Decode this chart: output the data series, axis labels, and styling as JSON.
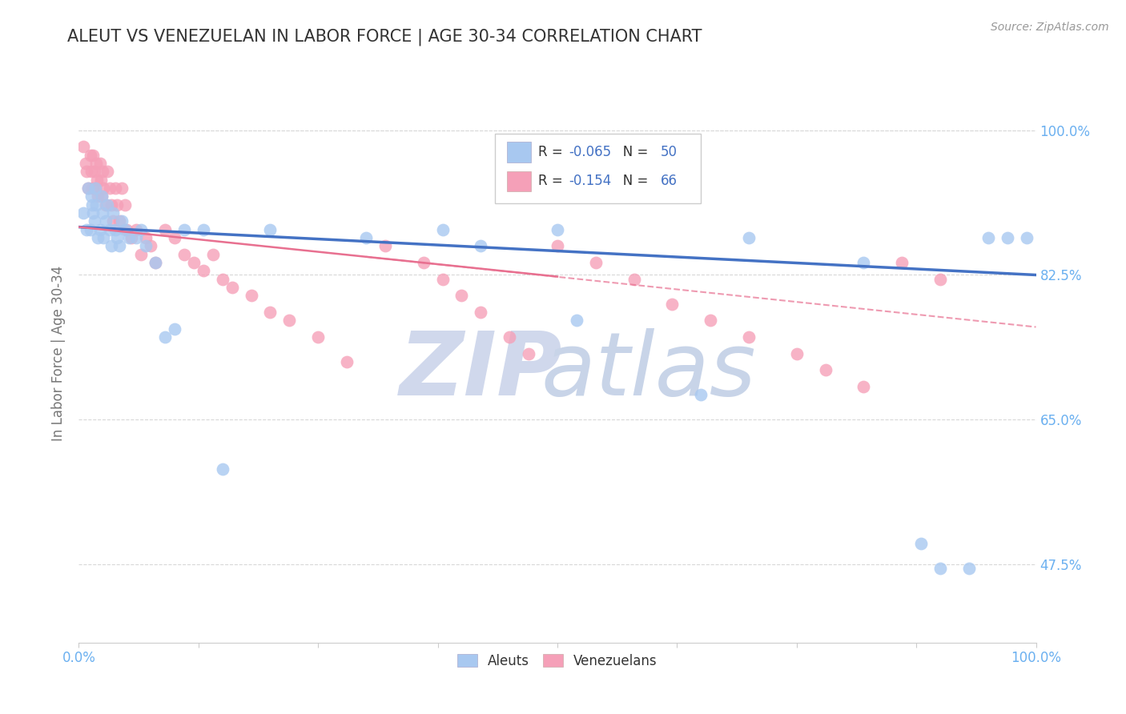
{
  "title": "ALEUT VS VENEZUELAN IN LABOR FORCE | AGE 30-34 CORRELATION CHART",
  "source": "Source: ZipAtlas.com",
  "ylabel": "In Labor Force | Age 30-34",
  "xlim": [
    0.0,
    1.0
  ],
  "ylim": [
    0.38,
    1.08
  ],
  "yticks": [
    0.475,
    0.65,
    0.825,
    1.0
  ],
  "ytick_labels": [
    "47.5%",
    "65.0%",
    "82.5%",
    "100.0%"
  ],
  "xticks": [
    0.0,
    0.125,
    0.25,
    0.375,
    0.5,
    0.625,
    0.75,
    0.875,
    1.0
  ],
  "xtick_labels": [
    "0.0%",
    "",
    "",
    "",
    "",
    "",
    "",
    "",
    "100.0%"
  ],
  "aleut_color": "#a8c8f0",
  "venezuelan_color": "#f5a0b8",
  "aleut_R": -0.065,
  "aleut_N": 50,
  "venezuelan_R": -0.154,
  "venezuelan_N": 66,
  "background_color": "#ffffff",
  "grid_color": "#d8d8d8",
  "title_color": "#333333",
  "axis_label_color": "#777777",
  "tick_color": "#6bb0f0",
  "right_tick_color": "#6bb0f0",
  "aleut_trend_color": "#4472c4",
  "venezuelan_trend_color": "#e87090",
  "aleut_trend_x": [
    0.0,
    1.0
  ],
  "aleut_trend_y": [
    0.883,
    0.825
  ],
  "venezuelan_trend_x": [
    0.0,
    0.5
  ],
  "venezuelan_trend_y": [
    0.883,
    0.823
  ],
  "aleut_points_x": [
    0.005,
    0.008,
    0.01,
    0.012,
    0.013,
    0.014,
    0.015,
    0.016,
    0.017,
    0.018,
    0.02,
    0.022,
    0.024,
    0.025,
    0.026,
    0.028,
    0.03,
    0.032,
    0.034,
    0.036,
    0.038,
    0.04,
    0.042,
    0.045,
    0.048,
    0.052,
    0.06,
    0.065,
    0.07,
    0.08,
    0.09,
    0.1,
    0.11,
    0.13,
    0.15,
    0.2,
    0.3,
    0.38,
    0.42,
    0.5,
    0.52,
    0.65,
    0.7,
    0.82,
    0.88,
    0.9,
    0.93,
    0.95,
    0.97,
    0.99
  ],
  "aleut_points_y": [
    0.9,
    0.88,
    0.93,
    0.88,
    0.92,
    0.91,
    0.9,
    0.89,
    0.93,
    0.91,
    0.87,
    0.88,
    0.92,
    0.9,
    0.87,
    0.89,
    0.91,
    0.88,
    0.86,
    0.9,
    0.88,
    0.87,
    0.86,
    0.89,
    0.88,
    0.87,
    0.87,
    0.88,
    0.86,
    0.84,
    0.75,
    0.76,
    0.88,
    0.88,
    0.59,
    0.88,
    0.87,
    0.88,
    0.86,
    0.88,
    0.77,
    0.68,
    0.87,
    0.84,
    0.5,
    0.47,
    0.47,
    0.87,
    0.87,
    0.87
  ],
  "venezuelan_points_x": [
    0.005,
    0.007,
    0.008,
    0.01,
    0.012,
    0.013,
    0.014,
    0.015,
    0.016,
    0.017,
    0.018,
    0.019,
    0.02,
    0.022,
    0.023,
    0.024,
    0.025,
    0.026,
    0.028,
    0.03,
    0.032,
    0.034,
    0.036,
    0.038,
    0.04,
    0.042,
    0.045,
    0.048,
    0.05,
    0.055,
    0.06,
    0.065,
    0.07,
    0.075,
    0.08,
    0.09,
    0.1,
    0.11,
    0.12,
    0.13,
    0.14,
    0.15,
    0.16,
    0.18,
    0.2,
    0.22,
    0.25,
    0.28,
    0.32,
    0.36,
    0.38,
    0.4,
    0.42,
    0.45,
    0.47,
    0.5,
    0.54,
    0.58,
    0.62,
    0.66,
    0.7,
    0.75,
    0.78,
    0.82,
    0.86,
    0.9
  ],
  "venezuelan_points_y": [
    0.98,
    0.96,
    0.95,
    0.93,
    0.97,
    0.95,
    0.93,
    0.97,
    0.95,
    0.93,
    0.96,
    0.94,
    0.92,
    0.96,
    0.94,
    0.92,
    0.95,
    0.93,
    0.91,
    0.95,
    0.93,
    0.91,
    0.89,
    0.93,
    0.91,
    0.89,
    0.93,
    0.91,
    0.88,
    0.87,
    0.88,
    0.85,
    0.87,
    0.86,
    0.84,
    0.88,
    0.87,
    0.85,
    0.84,
    0.83,
    0.85,
    0.82,
    0.81,
    0.8,
    0.78,
    0.77,
    0.75,
    0.72,
    0.86,
    0.84,
    0.82,
    0.8,
    0.78,
    0.75,
    0.73,
    0.86,
    0.84,
    0.82,
    0.79,
    0.77,
    0.75,
    0.73,
    0.71,
    0.69,
    0.84,
    0.82
  ],
  "watermark_zip_color": "#d0d8ec",
  "watermark_atlas_color": "#c8d4e8"
}
